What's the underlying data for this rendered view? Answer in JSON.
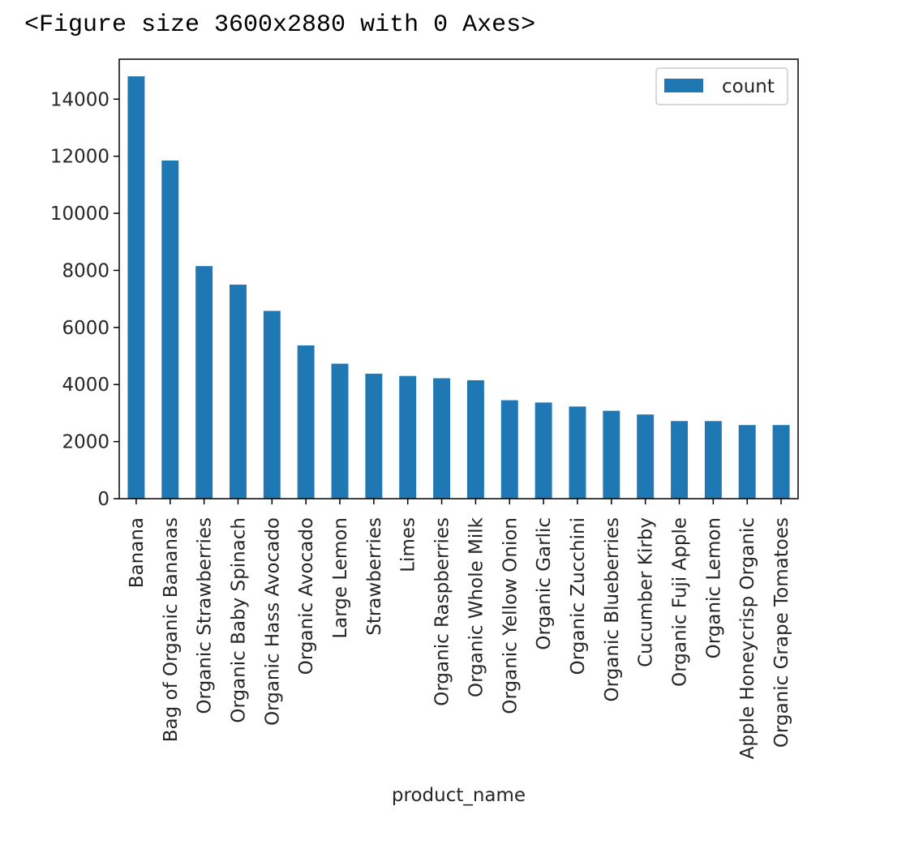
{
  "output_text": "<Figure size 3600x2880 with 0 Axes>",
  "chart_data": {
    "type": "bar",
    "categories": [
      "Banana",
      "Bag of Organic Bananas",
      "Organic Strawberries",
      "Organic Baby Spinach",
      "Organic Hass Avocado",
      "Organic Avocado",
      "Large Lemon",
      "Strawberries",
      "Limes",
      "Organic Raspberries",
      "Organic Whole Milk",
      "Organic Yellow Onion",
      "Organic Garlic",
      "Organic Zucchini",
      "Organic Blueberries",
      "Cucumber Kirby",
      "Organic Fuji Apple",
      "Organic Lemon",
      "Apple Honeycrisp Organic",
      "Organic Grape Tomatoes"
    ],
    "series": [
      {
        "name": "count",
        "color": "#1f77b4",
        "values": [
          14800,
          11850,
          8150,
          7500,
          6580,
          5370,
          4730,
          4380,
          4300,
          4220,
          4150,
          3450,
          3370,
          3230,
          3080,
          2950,
          2720,
          2720,
          2580,
          2580
        ]
      }
    ],
    "xlabel": "product_name",
    "ylabel": "",
    "ylim": [
      0,
      15400
    ],
    "yticks": [
      0,
      2000,
      4000,
      6000,
      8000,
      10000,
      12000,
      14000
    ],
    "grid": false,
    "legend": "upper right"
  }
}
